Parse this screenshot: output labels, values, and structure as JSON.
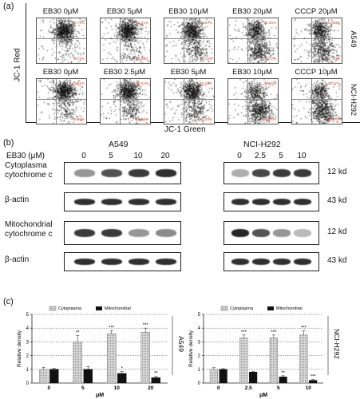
{
  "panel_a": {
    "letter": "(a)",
    "y_axis_label": "JC-1 Red",
    "x_axis_label": "JC-1 Green",
    "rows": [
      {
        "cell_line": "A549",
        "plots": [
          {
            "label": "EB30 0μM",
            "q_tr": "91.79%",
            "q_br": "6.72%"
          },
          {
            "label": "EB30 5μM",
            "q_tr": "86.21%",
            "q_br": "10.95%"
          },
          {
            "label": "EB30 10μM",
            "q_tr": "74.87%",
            "q_br": "23.13%"
          },
          {
            "label": "EB30 20μM",
            "q_tr": "50.38%",
            "q_br": "46.72%"
          },
          {
            "label": "CCCP 20μM",
            "q_tr": "54.38%",
            "q_br": "37.63%"
          }
        ]
      },
      {
        "cell_line": "NCI-H292",
        "plots": [
          {
            "label": "EB30 0μM",
            "q_tr": "83.93%",
            "q_br": "9.95%"
          },
          {
            "label": "EB30 2.5μM",
            "q_tr": "80.52%",
            "q_br": "16.99%"
          },
          {
            "label": "EB30 5μM",
            "q_tr": "72.15%",
            "q_br": "24.39%"
          },
          {
            "label": "EB30 10μM",
            "q_tr": "31.55%",
            "q_br": "66.75%"
          },
          {
            "label": "CCCP 10μM",
            "q_tr": "38.47%",
            "q_br": "60.73%"
          }
        ]
      }
    ]
  },
  "panel_b": {
    "letter": "(b)",
    "dose_header": "EB30 (μM)",
    "groups": [
      {
        "name": "A549",
        "doses": [
          "0",
          "5",
          "10",
          "20"
        ]
      },
      {
        "name": "NCI-H292",
        "doses": [
          "0",
          "2.5",
          "5",
          "10"
        ]
      }
    ],
    "blots": [
      {
        "label_line1": "Cytoplasma",
        "label_line2": "cytochrome c",
        "size": "12 kd",
        "left_intensity": [
          0.45,
          0.75,
          0.85,
          0.9
        ],
        "right_intensity": [
          0.35,
          0.8,
          0.85,
          0.85
        ]
      },
      {
        "label_line1": "β-actin",
        "label_line2": "",
        "size": "43 kd",
        "left_intensity": [
          0.9,
          0.9,
          0.9,
          0.9
        ],
        "right_intensity": [
          0.9,
          0.9,
          0.9,
          0.9
        ]
      },
      {
        "label_line1": "Mitochondrial",
        "label_line2": "cytochrome c",
        "size": "12 kd",
        "left_intensity": [
          0.85,
          0.85,
          0.45,
          0.5
        ],
        "right_intensity": [
          0.95,
          0.75,
          0.45,
          0.3
        ]
      },
      {
        "label_line1": "β-actin",
        "label_line2": "",
        "size": "43 kd",
        "left_intensity": [
          0.9,
          0.9,
          0.9,
          0.9
        ],
        "right_intensity": [
          0.9,
          0.9,
          0.9,
          0.9
        ]
      }
    ]
  },
  "panel_c": {
    "letter": "(c)"
  },
  "chart_data": [
    {
      "type": "bar",
      "side_label": "A549",
      "legend": [
        "Cytoplasma",
        "Mitochondrial"
      ],
      "categories": [
        "0",
        "5",
        "10",
        "20"
      ],
      "xlabel": "μM",
      "ylabel": "Relative density",
      "ylim": [
        0,
        5
      ],
      "yticks": [
        "0",
        "1",
        "2",
        "3",
        "4",
        "5"
      ],
      "grid": "horizontal-dotted",
      "series": [
        {
          "name": "Cytoplasma",
          "values": [
            1.0,
            3.0,
            3.6,
            3.7
          ],
          "errors": [
            0.15,
            0.45,
            0.2,
            0.3
          ],
          "sig": [
            "",
            "**",
            "***",
            "***"
          ]
        },
        {
          "name": "Mitochondrial",
          "values": [
            1.0,
            1.0,
            0.7,
            0.4
          ],
          "errors": [
            0.08,
            0.2,
            0.15,
            0.08
          ],
          "sig": [
            "",
            "",
            "*",
            "**"
          ]
        }
      ]
    },
    {
      "type": "bar",
      "side_label": "NCI-H292",
      "legend": [
        "Cytoplasma",
        "Mitochondrial"
      ],
      "categories": [
        "0",
        "2.5",
        "5",
        "10"
      ],
      "xlabel": "μM",
      "ylabel": "Relative density",
      "ylim": [
        0,
        5
      ],
      "yticks": [
        "0",
        "1",
        "2",
        "3",
        "4",
        "5"
      ],
      "grid": "horizontal-dotted",
      "series": [
        {
          "name": "Cytoplasma",
          "values": [
            1.0,
            3.3,
            3.3,
            3.5
          ],
          "errors": [
            0.12,
            0.2,
            0.2,
            0.3
          ],
          "sig": [
            "",
            "***",
            "***",
            "***"
          ]
        },
        {
          "name": "Mitochondrial",
          "values": [
            1.0,
            0.8,
            0.45,
            0.2
          ],
          "errors": [
            0.05,
            0.06,
            0.08,
            0.05
          ],
          "sig": [
            "",
            "",
            "**",
            "***"
          ]
        }
      ]
    }
  ]
}
